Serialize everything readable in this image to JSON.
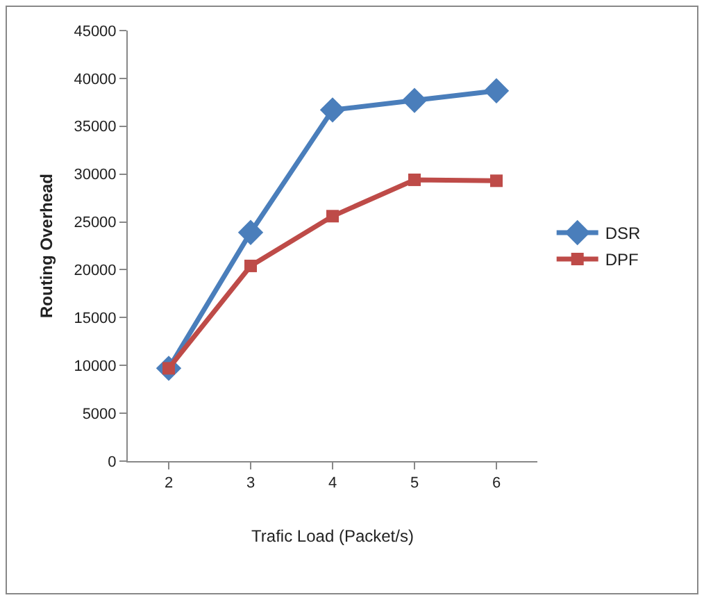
{
  "chart_data": {
    "type": "line",
    "xlabel": "Trafic Load (Packet/s)",
    "ylabel": "Routing Overhead",
    "categories": [
      "2",
      "3",
      "4",
      "5",
      "6"
    ],
    "series": [
      {
        "name": "DSR",
        "color": "#4a7ebb",
        "marker": "diamond",
        "values": [
          9700,
          23900,
          36700,
          37700,
          38700
        ]
      },
      {
        "name": "DPF",
        "color": "#be4b48",
        "marker": "square",
        "values": [
          9700,
          20400,
          25600,
          29400,
          29300
        ]
      }
    ],
    "ylim": [
      0,
      45000
    ],
    "yticks": [
      0,
      5000,
      10000,
      15000,
      20000,
      25000,
      30000,
      35000,
      40000,
      45000
    ],
    "grid": false,
    "legend": "right",
    "line_style": "solid"
  }
}
